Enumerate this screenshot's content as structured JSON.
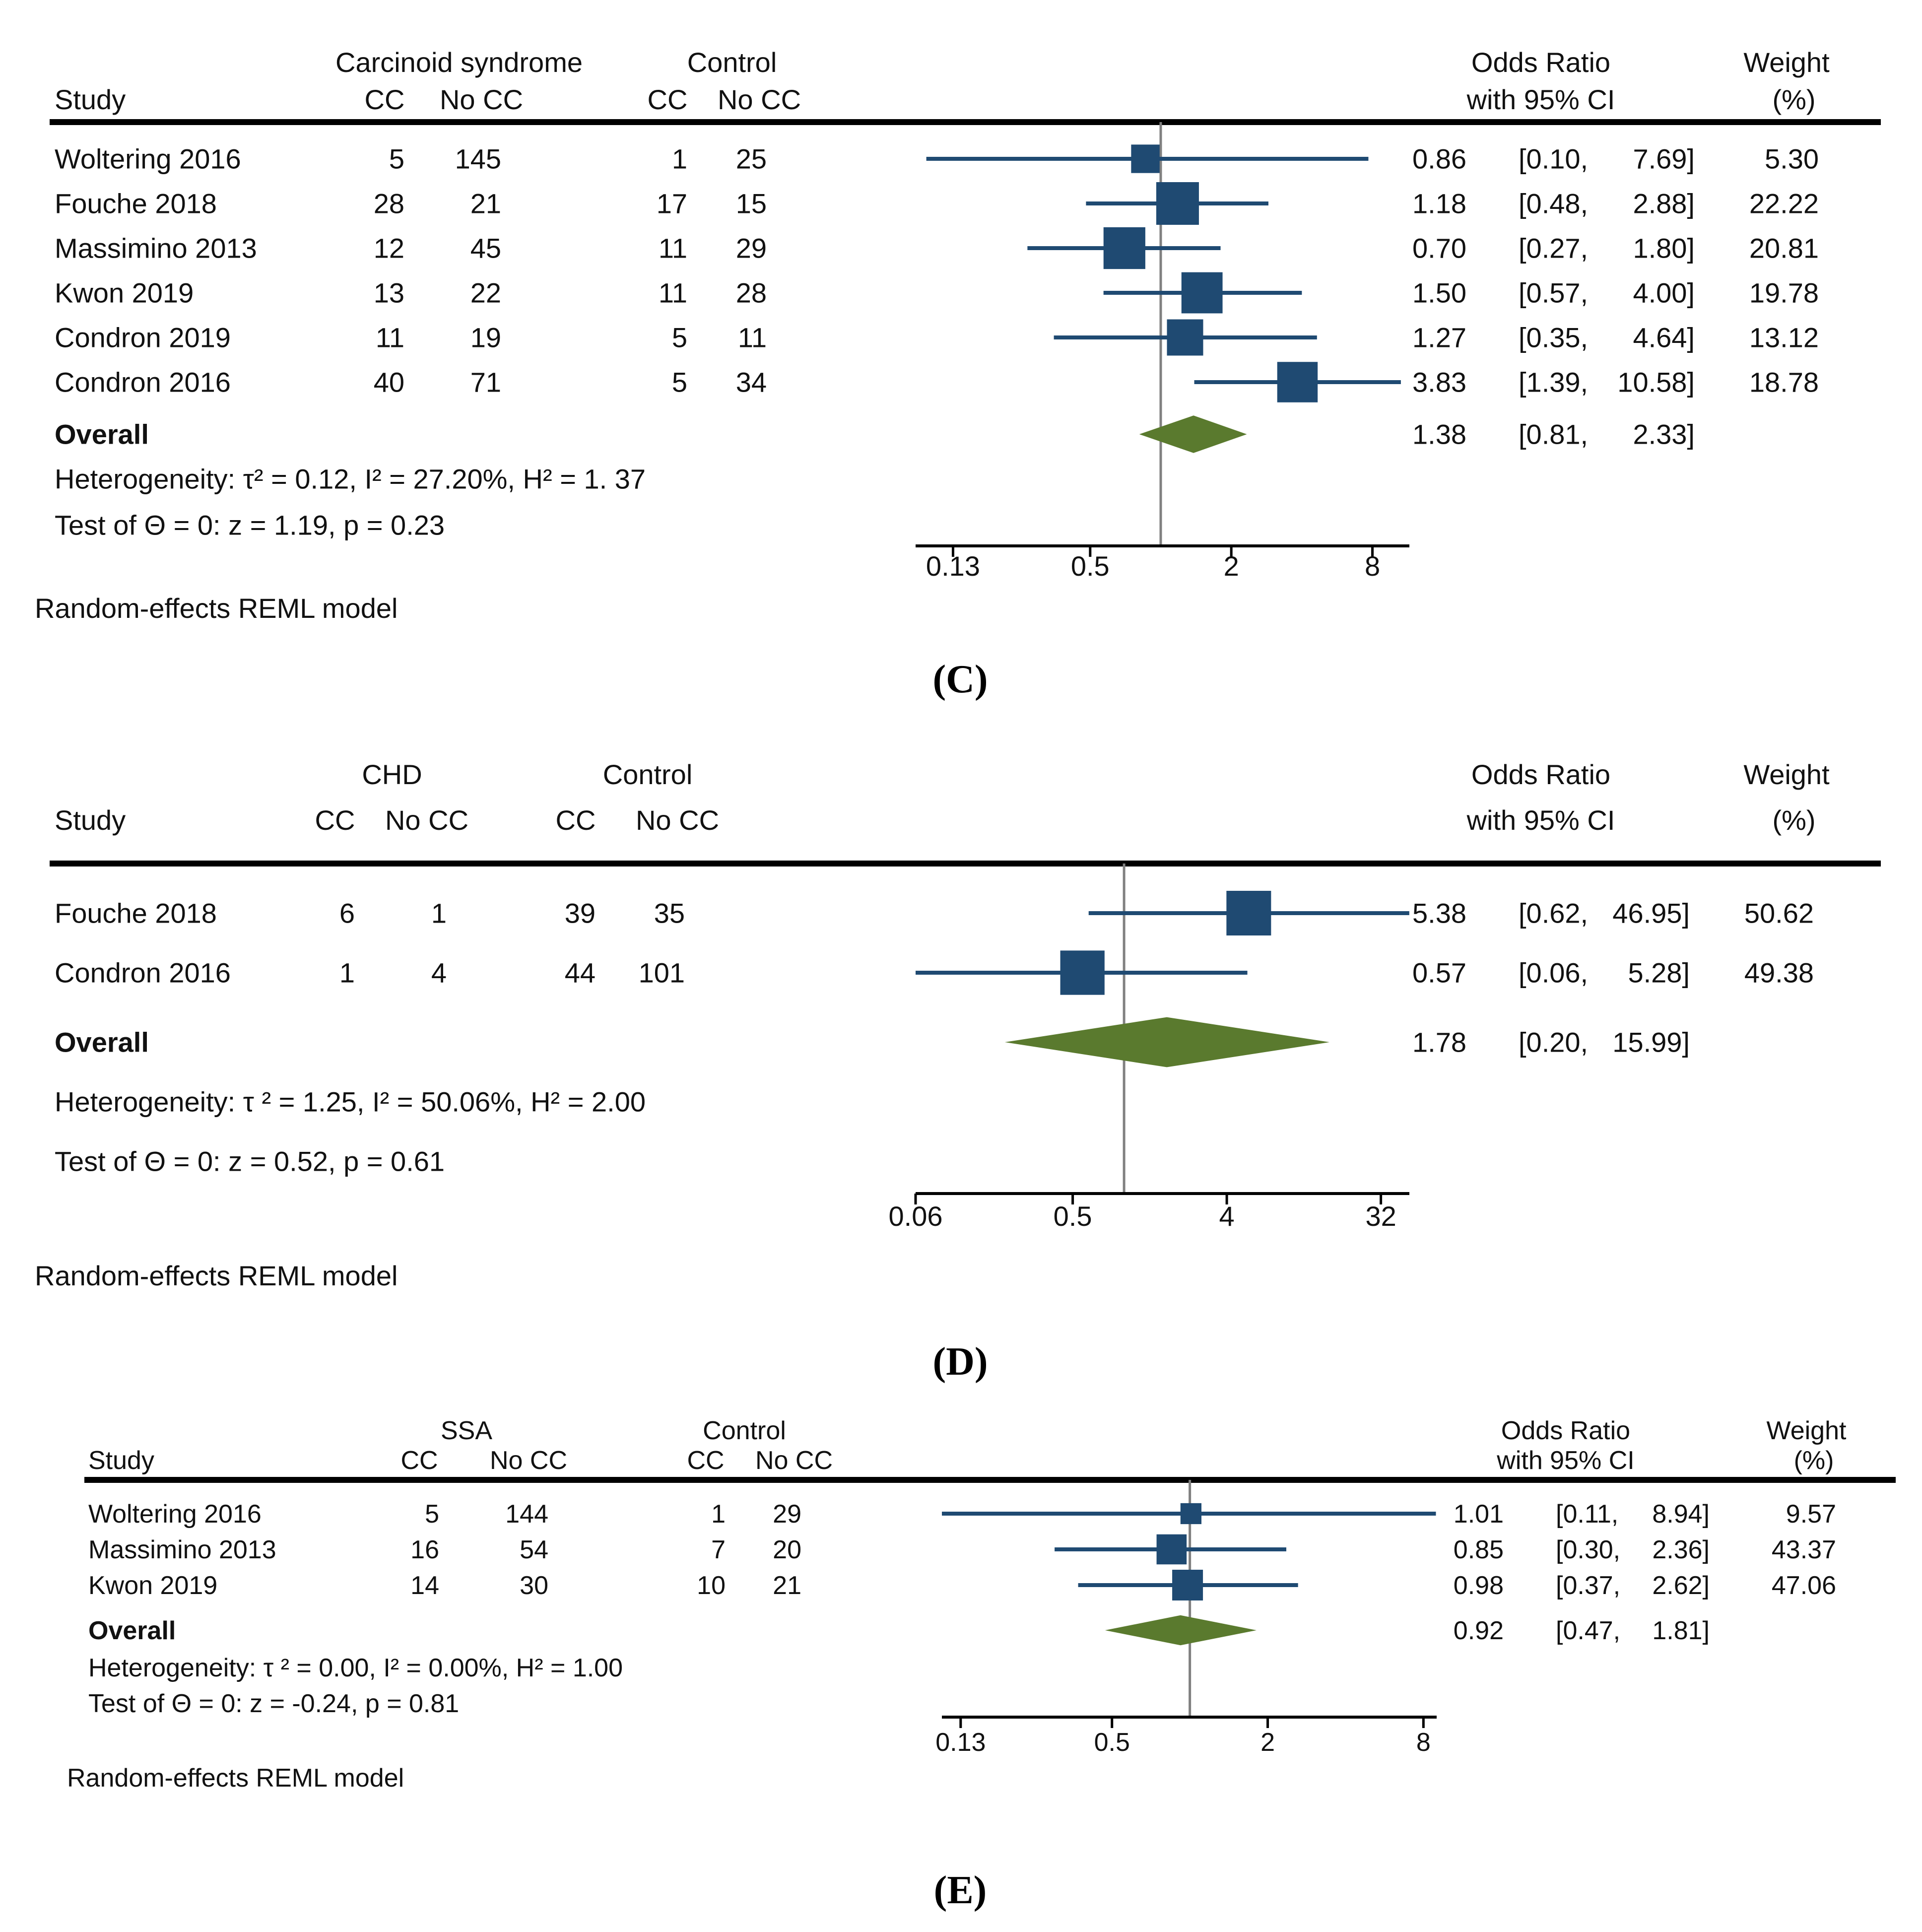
{
  "colors": {
    "marker": "#1f4a72",
    "diamond": "#5a7a2e",
    "null_line": "#808080",
    "rule": "#000000",
    "text": "#111111"
  },
  "chart_data": [
    {
      "type": "forest",
      "panel_label": "(C)",
      "panel_letter": "C",
      "group_title": "Carcinoid syndrome",
      "control_title": "Control",
      "col_study": "Study",
      "col_cc": "CC",
      "col_nocc": "No CC",
      "or_title_1": "Odds Ratio",
      "or_title_2": "with 95% CI",
      "weight_title_1": "Weight",
      "weight_title_2": "(%)",
      "x_scale": "log",
      "x_ticks": [
        0.13,
        0.5,
        2,
        8
      ],
      "x_tick_labels": [
        "0.13",
        "0.5",
        "2",
        "8"
      ],
      "xlim": [
        0.09,
        11.5
      ],
      "null_value": 1,
      "studies": [
        {
          "name": "Woltering 2016",
          "g_cc": "5",
          "g_nocc": "145",
          "c_cc": "1",
          "c_nocc": "25",
          "or": 0.86,
          "lo": 0.1,
          "hi": 7.69,
          "or_text": "0.86",
          "lo_text": "[0.10,",
          "hi_text": "7.69]",
          "weight": 5.3,
          "weight_text": "5.30"
        },
        {
          "name": "Fouche 2018",
          "g_cc": "28",
          "g_nocc": "21",
          "c_cc": "17",
          "c_nocc": "15",
          "or": 1.18,
          "lo": 0.48,
          "hi": 2.88,
          "or_text": "1.18",
          "lo_text": "[0.48,",
          "hi_text": "2.88]",
          "weight": 22.22,
          "weight_text": "22.22"
        },
        {
          "name": "Massimino 2013",
          "g_cc": "12",
          "g_nocc": "45",
          "c_cc": "11",
          "c_nocc": "29",
          "or": 0.7,
          "lo": 0.27,
          "hi": 1.8,
          "or_text": "0.70",
          "lo_text": "[0.27,",
          "hi_text": "1.80]",
          "weight": 20.81,
          "weight_text": "20.81"
        },
        {
          "name": "Kwon 2019",
          "g_cc": "13",
          "g_nocc": "22",
          "c_cc": "11",
          "c_nocc": "28",
          "or": 1.5,
          "lo": 0.57,
          "hi": 4.0,
          "or_text": "1.50",
          "lo_text": "[0.57,",
          "hi_text": "4.00]",
          "weight": 19.78,
          "weight_text": "19.78"
        },
        {
          "name": "Condron 2019",
          "g_cc": "11",
          "g_nocc": "19",
          "c_cc": "5",
          "c_nocc": "11",
          "or": 1.27,
          "lo": 0.35,
          "hi": 4.64,
          "or_text": "1.27",
          "lo_text": "[0.35,",
          "hi_text": "4.64]",
          "weight": 13.12,
          "weight_text": "13.12"
        },
        {
          "name": "Condron 2016",
          "g_cc": "40",
          "g_nocc": "71",
          "c_cc": "5",
          "c_nocc": "34",
          "or": 3.83,
          "lo": 1.39,
          "hi": 10.58,
          "or_text": "3.83",
          "lo_text": "[1.39,",
          "hi_text": "10.58]",
          "weight": 18.78,
          "weight_text": "18.78"
        }
      ],
      "overall": {
        "label": "Overall",
        "or": 1.38,
        "lo": 0.81,
        "hi": 2.33,
        "or_text": "1.38",
        "lo_text": "[0.81,",
        "hi_text": "2.33]"
      },
      "heterogeneity": "Heterogeneity: τ² = 0.12, I² = 27.20%, H² = 1. 37",
      "test": "Test of Θ = 0: z = 1.19, p = 0.23",
      "model": "Random-effects REML model"
    },
    {
      "type": "forest",
      "panel_label": "(D)",
      "panel_letter": "D",
      "group_title": "CHD",
      "control_title": "Control",
      "col_study": "Study",
      "col_cc": "CC",
      "col_nocc": "No CC",
      "or_title_1": "Odds Ratio",
      "or_title_2": "with 95% CI",
      "weight_title_1": "Weight",
      "weight_title_2": "(%)",
      "x_scale": "log",
      "x_ticks": [
        0.06,
        0.5,
        4,
        32
      ],
      "x_tick_labels": [
        "0.06",
        "0.5",
        "4",
        "32"
      ],
      "xlim": [
        0.06,
        47
      ],
      "null_value": 1,
      "studies": [
        {
          "name": "Fouche 2018",
          "g_cc": "6",
          "g_nocc": "1",
          "c_cc": "39",
          "c_nocc": "35",
          "or": 5.38,
          "lo": 0.62,
          "hi": 46.95,
          "or_text": "5.38",
          "lo_text": "[0.62,",
          "hi_text": "46.95]",
          "weight": 50.62,
          "weight_text": "50.62"
        },
        {
          "name": "Condron 2016",
          "g_cc": "1",
          "g_nocc": "4",
          "c_cc": "44",
          "c_nocc": "101",
          "or": 0.57,
          "lo": 0.06,
          "hi": 5.28,
          "or_text": "0.57",
          "lo_text": "[0.06,",
          "hi_text": "5.28]",
          "weight": 49.38,
          "weight_text": "49.38"
        }
      ],
      "overall": {
        "label": "Overall",
        "or": 1.78,
        "lo": 0.2,
        "hi": 15.99,
        "or_text": "1.78",
        "lo_text": "[0.20,",
        "hi_text": "15.99]"
      },
      "heterogeneity": "Heterogeneity: τ ² = 1.25, I² = 50.06%, H² = 2.00",
      "test": "Test of Θ = 0: z = 0.52, p = 0.61",
      "model": "Random-effects REML model"
    },
    {
      "type": "forest",
      "panel_label": "(E)",
      "panel_letter": "E",
      "group_title": "SSA",
      "control_title": "Control",
      "col_study": "Study",
      "col_cc": "CC",
      "col_nocc": "No CC",
      "or_title_1": "Odds Ratio",
      "or_title_2": "with 95% CI",
      "weight_title_1": "Weight",
      "weight_title_2": "(%)",
      "x_scale": "log",
      "x_ticks": [
        0.13,
        0.5,
        2,
        8
      ],
      "x_tick_labels": [
        "0.13",
        "0.5",
        "2",
        "8"
      ],
      "xlim": [
        0.11,
        9
      ],
      "null_value": 1,
      "studies": [
        {
          "name": "Woltering 2016",
          "g_cc": "5",
          "g_nocc": "144",
          "c_cc": "1",
          "c_nocc": "29",
          "or": 1.01,
          "lo": 0.11,
          "hi": 8.94,
          "or_text": "1.01",
          "lo_text": "[0.11,",
          "hi_text": "8.94]",
          "weight": 9.57,
          "weight_text": "9.57"
        },
        {
          "name": "Massimino 2013",
          "g_cc": "16",
          "g_nocc": "54",
          "c_cc": "7",
          "c_nocc": "20",
          "or": 0.85,
          "lo": 0.3,
          "hi": 2.36,
          "or_text": "0.85",
          "lo_text": "[0.30,",
          "hi_text": "2.36]",
          "weight": 43.37,
          "weight_text": "43.37"
        },
        {
          "name": "Kwon 2019",
          "g_cc": "14",
          "g_nocc": "30",
          "c_cc": "10",
          "c_nocc": "21",
          "or": 0.98,
          "lo": 0.37,
          "hi": 2.62,
          "or_text": "0.98",
          "lo_text": "[0.37,",
          "hi_text": "2.62]",
          "weight": 47.06,
          "weight_text": "47.06"
        }
      ],
      "overall": {
        "label": "Overall",
        "or": 0.92,
        "lo": 0.47,
        "hi": 1.81,
        "or_text": "0.92",
        "lo_text": "[0.47,",
        "hi_text": "1.81]"
      },
      "heterogeneity": "Heterogeneity: τ ² = 0.00, I² = 0.00%, H² = 1.00",
      "test": "Test of Θ = 0: z = -0.24, p = 0.81",
      "model": "Random-effects REML model"
    }
  ]
}
